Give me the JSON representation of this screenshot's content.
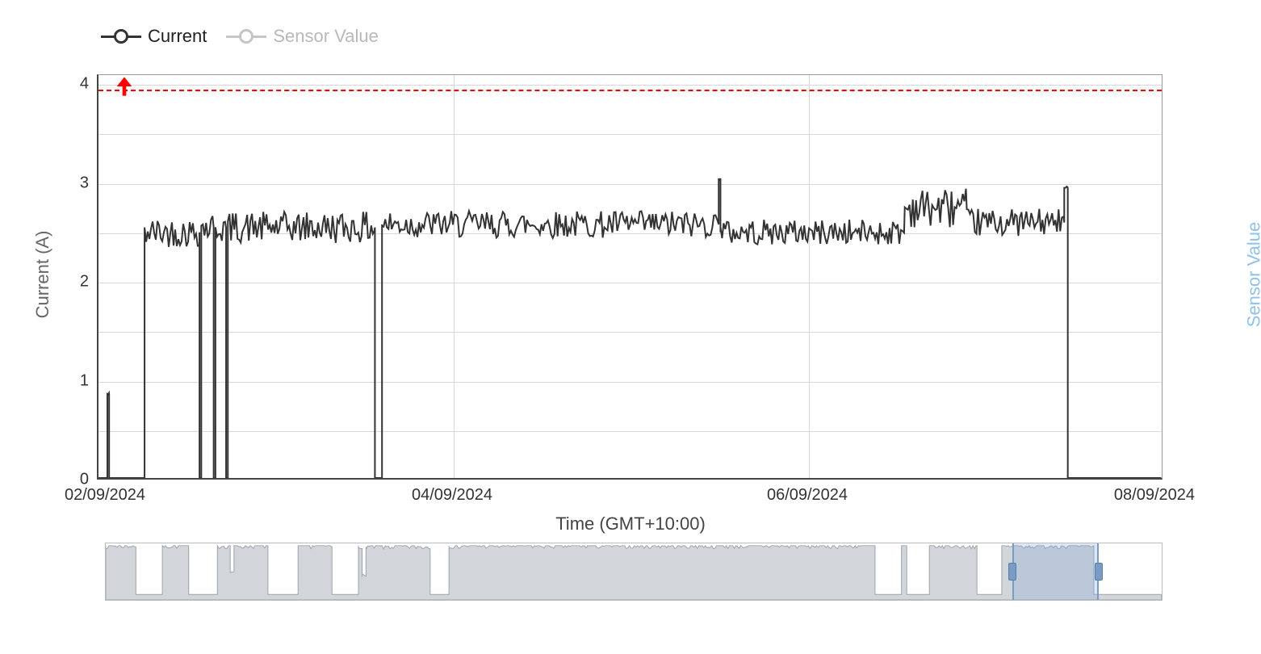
{
  "legend": {
    "items": [
      {
        "label": "Current",
        "color": "#333333",
        "text_color": "#222222",
        "active": true
      },
      {
        "label": "Sensor Value",
        "color": "#c5c5c5",
        "text_color": "#b9b9b9",
        "active": false
      }
    ]
  },
  "chart": {
    "type": "line",
    "background_color": "#ffffff",
    "grid_color": "#d8d8d8",
    "axis_color": "#444444",
    "line_color": "#333333",
    "line_width": 2,
    "x_axis": {
      "label": "Time (GMT+10:00)",
      "min": 0,
      "max": 6,
      "ticks": [
        {
          "pos": 0,
          "label": "02/09/2024"
        },
        {
          "pos": 2,
          "label": "04/09/2024"
        },
        {
          "pos": 4,
          "label": "06/09/2024"
        },
        {
          "pos": 6,
          "label": "08/09/2024"
        }
      ]
    },
    "y_axis": {
      "label": "Current (A)",
      "min": 0,
      "max": 4.1,
      "ticks": [
        {
          "pos": 0,
          "label": "0"
        },
        {
          "pos": 1,
          "label": "1"
        },
        {
          "pos": 2,
          "label": "2"
        },
        {
          "pos": 3,
          "label": "3"
        },
        {
          "pos": 4,
          "label": "4"
        }
      ],
      "minor_grid": [
        0.5,
        1.5,
        2.5,
        3.5
      ]
    },
    "y2_axis": {
      "label": "Sensor Value",
      "label_color": "#8fc1ed"
    },
    "threshold": {
      "value": 3.95,
      "color": "#ff0000",
      "arrow_up": true
    },
    "segments": [
      {
        "start": 0.0,
        "end": 0.05,
        "level": 0,
        "noise": 0
      },
      {
        "start": 0.05,
        "end": 0.06,
        "level": 0.85,
        "noise": 0.02,
        "spike": true
      },
      {
        "start": 0.06,
        "end": 0.26,
        "level": 0,
        "noise": 0
      },
      {
        "start": 0.26,
        "end": 0.57,
        "level": 2.5,
        "noise": 0.15
      },
      {
        "start": 0.57,
        "end": 0.58,
        "level": 0,
        "noise": 0
      },
      {
        "start": 0.58,
        "end": 0.65,
        "level": 2.55,
        "noise": 0.16
      },
      {
        "start": 0.65,
        "end": 0.66,
        "level": 0,
        "noise": 0
      },
      {
        "start": 0.66,
        "end": 0.72,
        "level": 2.55,
        "noise": 0.16
      },
      {
        "start": 0.72,
        "end": 0.73,
        "level": 0,
        "noise": 0
      },
      {
        "start": 0.73,
        "end": 1.56,
        "level": 2.55,
        "noise": 0.16
      },
      {
        "start": 1.56,
        "end": 1.6,
        "level": 0,
        "noise": 0
      },
      {
        "start": 1.6,
        "end": 3.5,
        "level": 2.58,
        "noise": 0.14
      },
      {
        "start": 3.5,
        "end": 3.51,
        "level": 3.05,
        "noise": 0.02,
        "spike": true
      },
      {
        "start": 3.51,
        "end": 4.55,
        "level": 2.5,
        "noise": 0.13
      },
      {
        "start": 4.55,
        "end": 4.9,
        "level": 2.75,
        "noise": 0.2
      },
      {
        "start": 4.9,
        "end": 5.45,
        "level": 2.6,
        "noise": 0.14
      },
      {
        "start": 5.45,
        "end": 5.47,
        "level": 2.95,
        "noise": 0.02,
        "spike": true
      },
      {
        "start": 5.47,
        "end": 6.0,
        "level": 0,
        "noise": 0
      }
    ]
  },
  "navigator": {
    "background": "#ffffff",
    "fill_color": "#d2d6db",
    "stroke_color": "#9ca3ac",
    "selection_color": "rgba(120,160,210,0.25)",
    "handle_color": "#7a9bc4",
    "x_min": 0,
    "x_max": 14,
    "selection": {
      "start": 12.0,
      "end": 13.15
    },
    "segments": [
      {
        "start": 0.0,
        "end": 0.4,
        "level": 1.0
      },
      {
        "start": 0.4,
        "end": 0.75,
        "level": 0.06
      },
      {
        "start": 0.75,
        "end": 1.1,
        "level": 1.0
      },
      {
        "start": 1.1,
        "end": 1.48,
        "level": 0.06
      },
      {
        "start": 1.48,
        "end": 1.65,
        "level": 1.0
      },
      {
        "start": 1.65,
        "end": 1.7,
        "level": 0.5
      },
      {
        "start": 1.7,
        "end": 2.15,
        "level": 1.0
      },
      {
        "start": 2.15,
        "end": 2.55,
        "level": 0.06
      },
      {
        "start": 2.55,
        "end": 3.0,
        "level": 1.0
      },
      {
        "start": 3.0,
        "end": 3.35,
        "level": 0.06
      },
      {
        "start": 3.35,
        "end": 3.4,
        "level": 1.0
      },
      {
        "start": 3.4,
        "end": 3.45,
        "level": 0.4
      },
      {
        "start": 3.45,
        "end": 4.3,
        "level": 0.98
      },
      {
        "start": 4.3,
        "end": 4.55,
        "level": 0.06
      },
      {
        "start": 4.55,
        "end": 10.2,
        "level": 1.0
      },
      {
        "start": 10.2,
        "end": 10.55,
        "level": 0.06
      },
      {
        "start": 10.55,
        "end": 10.62,
        "level": 1.0
      },
      {
        "start": 10.62,
        "end": 10.92,
        "level": 0.06
      },
      {
        "start": 10.92,
        "end": 11.55,
        "level": 1.0
      },
      {
        "start": 11.55,
        "end": 11.88,
        "level": 0.06
      },
      {
        "start": 11.88,
        "end": 13.1,
        "level": 1.0
      },
      {
        "start": 13.1,
        "end": 14.0,
        "level": 0.06
      }
    ]
  }
}
